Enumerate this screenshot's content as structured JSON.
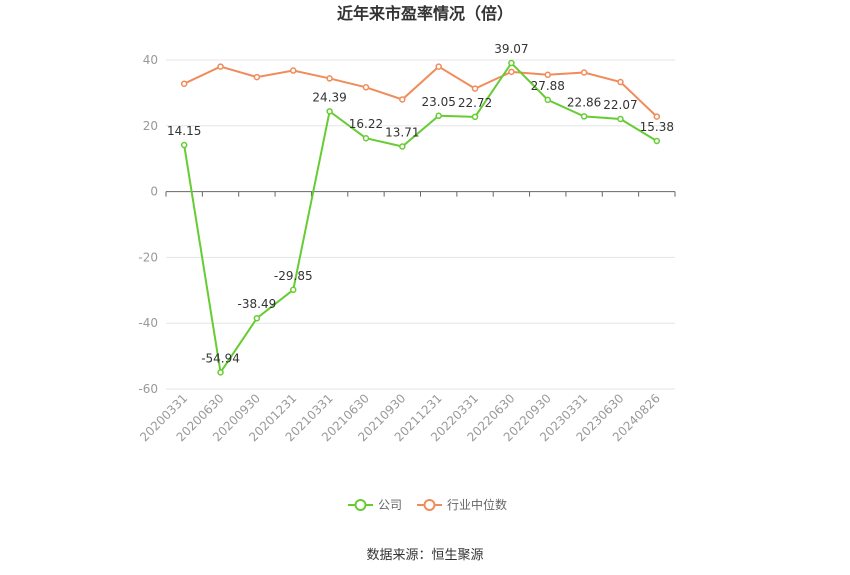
{
  "chart_data": {
    "type": "line",
    "title": "近年来市盈率情况（倍）",
    "x": [
      "20200331",
      "20200630",
      "20200930",
      "20201231",
      "20210331",
      "20210630",
      "20210930",
      "20211231",
      "20220331",
      "20220630",
      "20220930",
      "20230331",
      "20230630",
      "20240826"
    ],
    "ylim": [
      -60,
      40
    ],
    "yticks": [
      40,
      20,
      0,
      -20,
      -40,
      -60
    ],
    "grid": true,
    "legend_position": "bottom-center",
    "series": [
      {
        "name": "公司",
        "color": "#66cc33",
        "show_labels": true,
        "values": [
          14.15,
          -54.94,
          -38.49,
          -29.85,
          24.39,
          16.22,
          13.71,
          23.05,
          22.72,
          39.07,
          27.88,
          22.86,
          22.07,
          15.38
        ],
        "labels": [
          "14.15",
          "-54.94",
          "-38.49",
          "-29.85",
          "24.39",
          "16.22",
          "13.71",
          "23.05",
          "22.72",
          "39.07",
          "27.88",
          "22.86",
          "22.07",
          "15.38"
        ]
      },
      {
        "name": "行业中位数",
        "color": "#f08c5a",
        "show_labels": false,
        "values": [
          32.8,
          38.0,
          34.8,
          36.8,
          34.4,
          31.7,
          28.0,
          38.0,
          31.3,
          36.4,
          35.5,
          36.2,
          33.3,
          22.8
        ]
      }
    ]
  },
  "source": "数据来源：恒生聚源"
}
